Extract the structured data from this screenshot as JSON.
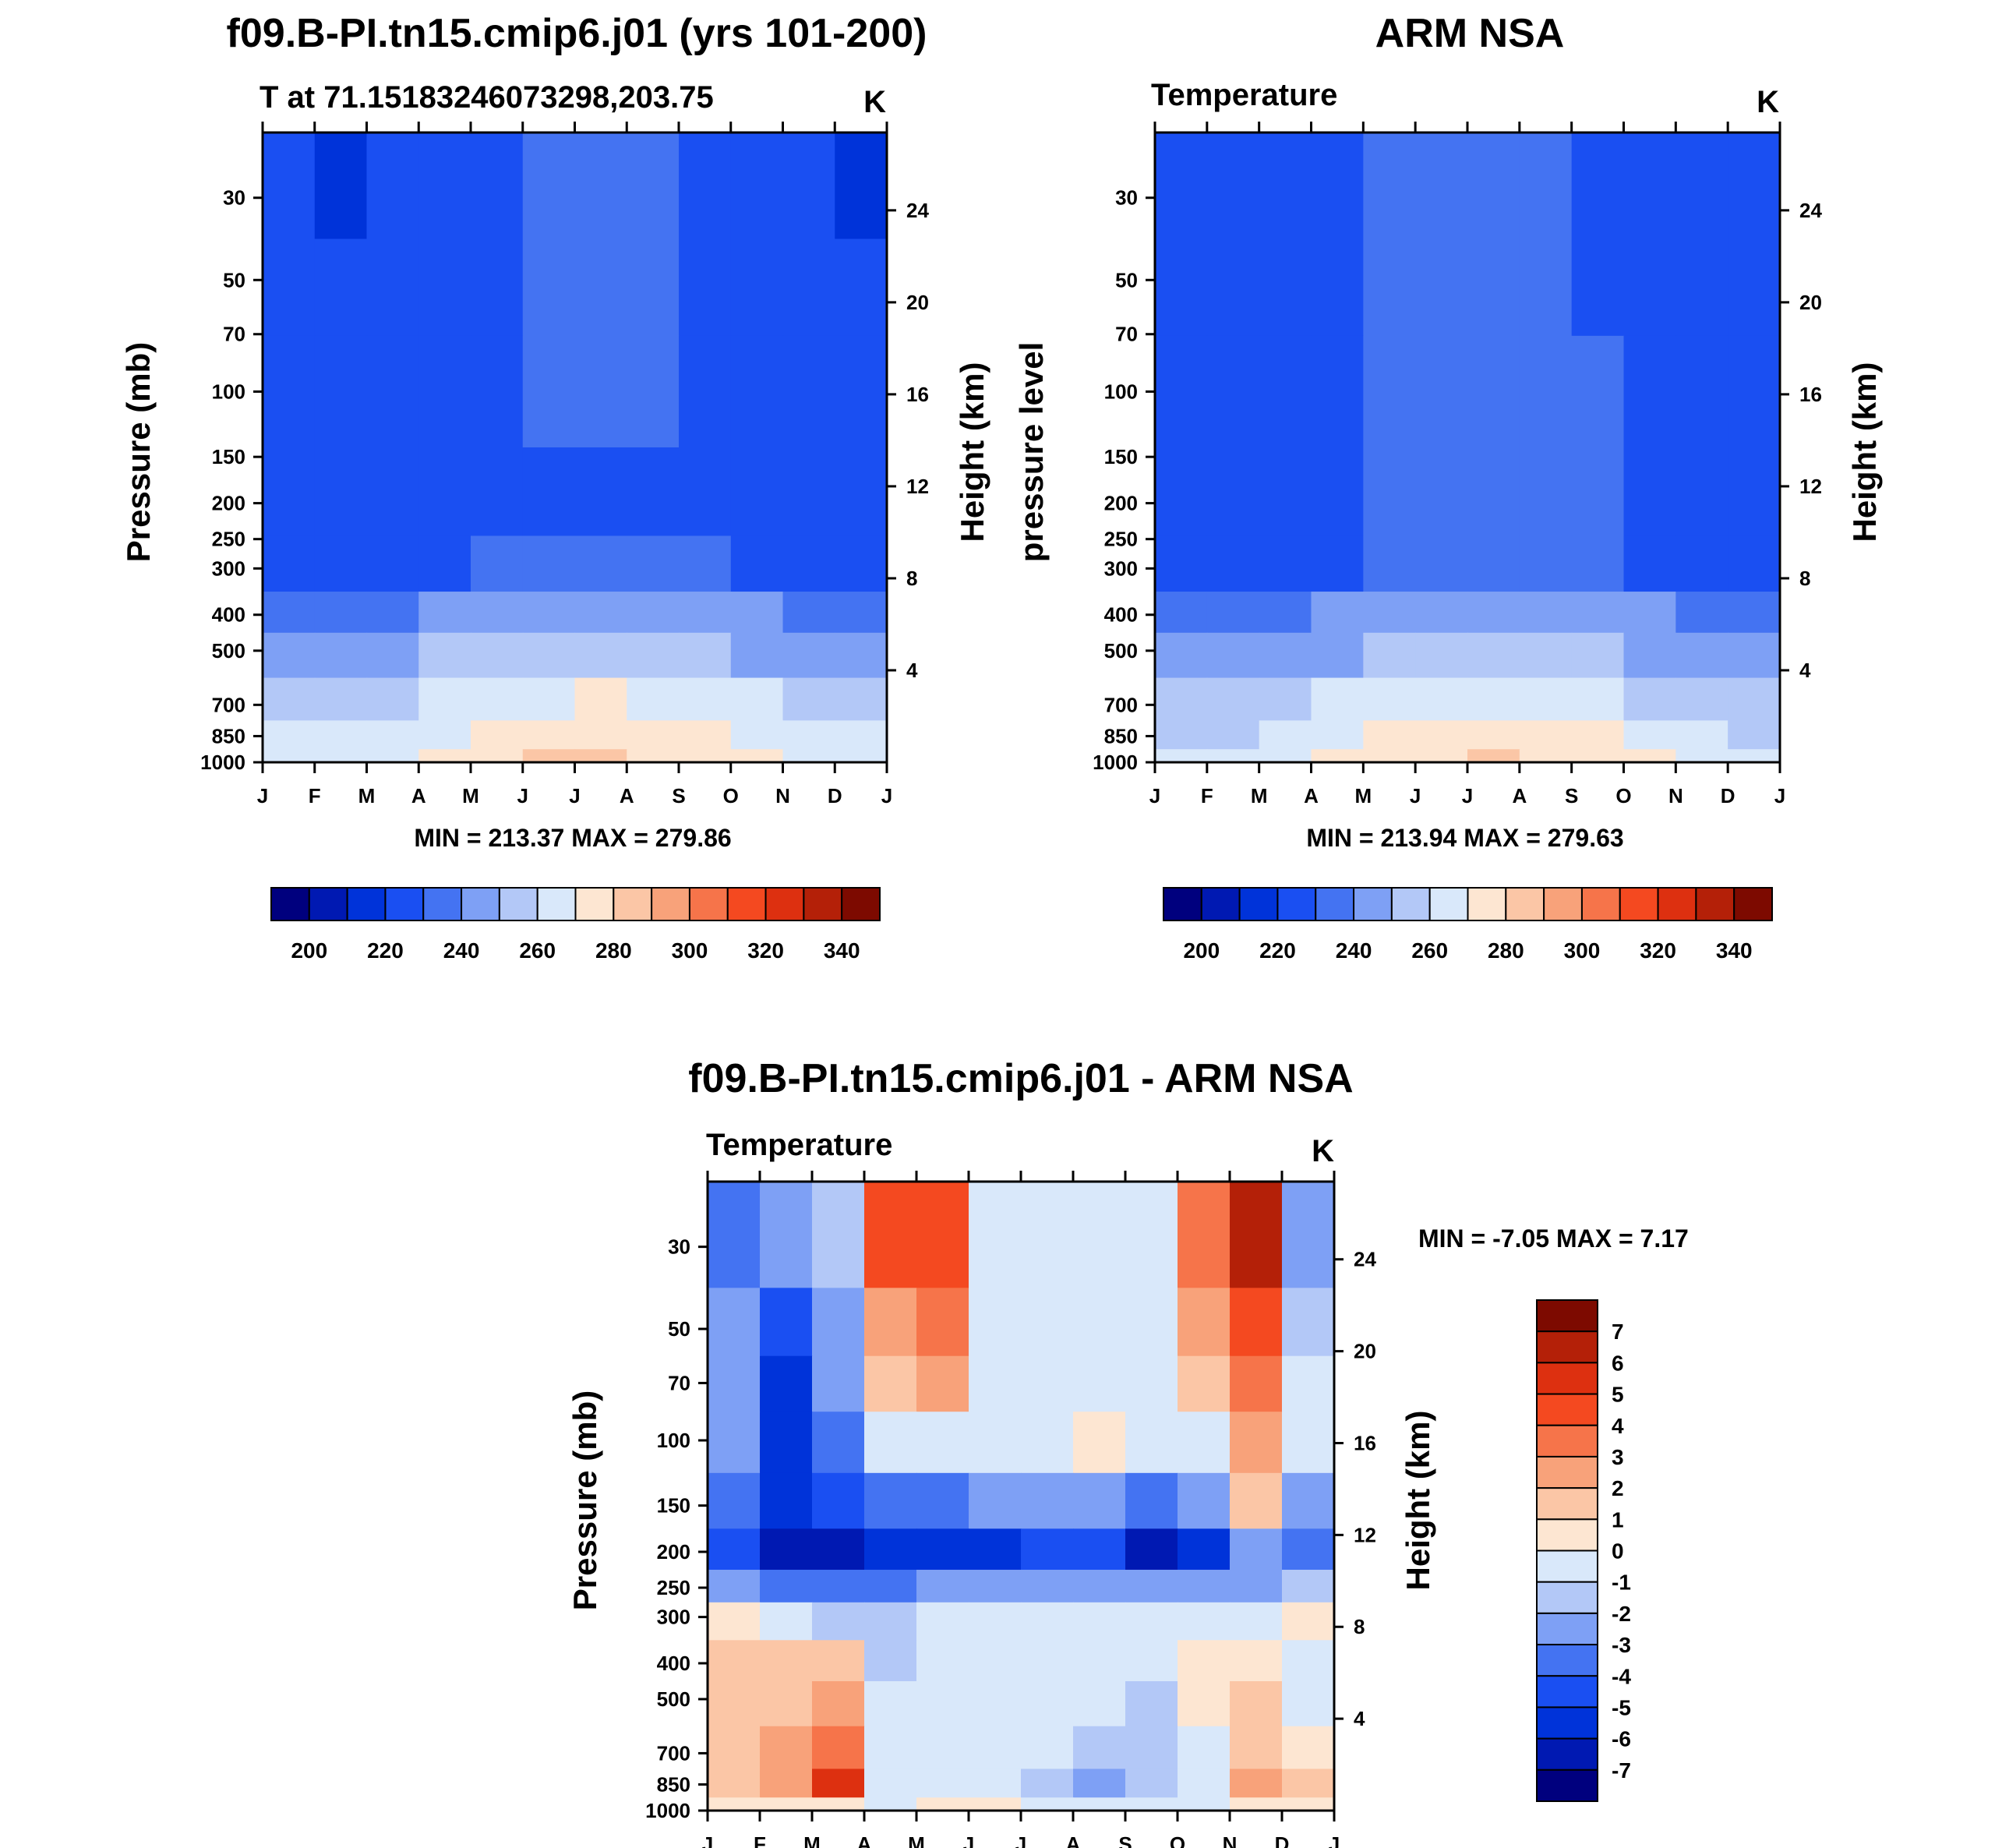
{
  "chart_data": [
    {
      "type": "heatmap",
      "title": "f09.B-PI.tn15.cmip6.j01 (yrs 101-200)",
      "subtitle_left": "T at 71.15183246073298,203.75",
      "subtitle_right": "K",
      "xlabel": "",
      "ylabel": "Pressure (mb)",
      "ylabel_right": "Height (km)",
      "x_ticks": [
        "J",
        "F",
        "M",
        "A",
        "M",
        "J",
        "J",
        "A",
        "S",
        "O",
        "N",
        "D",
        "J"
      ],
      "y_ticks": [
        30,
        50,
        70,
        100,
        150,
        200,
        250,
        300,
        400,
        500,
        700,
        850,
        1000
      ],
      "y_ticks_right": [
        24,
        20,
        16,
        12,
        8,
        4
      ],
      "ylim": [
        20,
        1000
      ],
      "stats": "MIN = 213.37 MAX = 279.86",
      "colorbar": {
        "labels": [
          200,
          220,
          240,
          260,
          280,
          300,
          320,
          340
        ]
      },
      "levels_K": [
        {
          "level": "1000",
          "values": [
            265,
            266,
            268,
            272,
            277,
            280,
            280,
            279,
            276,
            271,
            267,
            265
          ]
        },
        {
          "level": "850",
          "values": [
            261,
            262,
            264,
            268,
            273,
            276,
            277,
            276,
            272,
            267,
            264,
            262
          ]
        },
        {
          "level": "700",
          "values": [
            256,
            256,
            258,
            262,
            266,
            269,
            270,
            269,
            265,
            260,
            257,
            256
          ]
        },
        {
          "level": "500",
          "values": [
            246,
            246,
            247,
            250,
            253,
            256,
            257,
            256,
            253,
            249,
            247,
            246
          ]
        },
        {
          "level": "400",
          "values": [
            238,
            238,
            239,
            241,
            244,
            246,
            247,
            246,
            244,
            241,
            239,
            238
          ]
        },
        {
          "level": "300",
          "values": [
            227,
            227,
            228,
            229,
            231,
            232,
            232,
            232,
            230,
            228,
            227,
            227
          ]
        },
        {
          "level": "200",
          "values": [
            222,
            222,
            223,
            225,
            228,
            229,
            229,
            229,
            227,
            225,
            223,
            222
          ]
        },
        {
          "level": "100",
          "values": [
            222,
            221,
            223,
            225,
            228,
            230,
            231,
            230,
            228,
            225,
            222,
            221
          ]
        },
        {
          "level": "50",
          "values": [
            221,
            220,
            222,
            225,
            228,
            230,
            231,
            230,
            228,
            225,
            222,
            220
          ]
        },
        {
          "level": "30",
          "values": [
            220,
            219,
            221,
            225,
            228,
            230,
            231,
            230,
            228,
            225,
            221,
            219
          ]
        }
      ]
    },
    {
      "type": "heatmap",
      "title": "ARM NSA",
      "subtitle_left": "Temperature",
      "subtitle_right": "K",
      "xlabel": "",
      "ylabel": "pressure level",
      "ylabel_right": "Height (km)",
      "x_ticks": [
        "J",
        "F",
        "M",
        "A",
        "M",
        "J",
        "J",
        "A",
        "S",
        "O",
        "N",
        "D",
        "J"
      ],
      "y_ticks": [
        30,
        50,
        70,
        100,
        150,
        200,
        250,
        300,
        400,
        500,
        700,
        850,
        1000
      ],
      "y_ticks_right": [
        24,
        20,
        16,
        12,
        8,
        4
      ],
      "ylim": [
        20,
        1000
      ],
      "stats": "MIN = 213.94 MAX = 279.63",
      "colorbar": {
        "labels": [
          200,
          220,
          240,
          260,
          280,
          300,
          320,
          340
        ]
      },
      "levels_K": [
        {
          "level": "1000",
          "values": [
            262,
            263,
            265,
            270,
            276,
            279,
            280,
            279,
            276,
            270,
            265,
            263
          ]
        },
        {
          "level": "850",
          "values": [
            258,
            259,
            261,
            266,
            272,
            276,
            277,
            276,
            272,
            266,
            261,
            259
          ]
        },
        {
          "level": "700",
          "values": [
            252,
            253,
            255,
            260,
            265,
            268,
            269,
            268,
            264,
            259,
            255,
            253
          ]
        },
        {
          "level": "500",
          "values": [
            243,
            243,
            245,
            249,
            253,
            255,
            256,
            255,
            252,
            248,
            245,
            244
          ]
        },
        {
          "level": "400",
          "values": [
            236,
            236,
            237,
            240,
            243,
            245,
            246,
            245,
            243,
            240,
            237,
            236
          ]
        },
        {
          "level": "300",
          "values": [
            226,
            225,
            226,
            229,
            232,
            233,
            234,
            233,
            231,
            228,
            226,
            226
          ]
        },
        {
          "level": "200",
          "values": [
            223,
            222,
            224,
            227,
            230,
            232,
            233,
            232,
            230,
            227,
            224,
            223
          ]
        },
        {
          "level": "100",
          "values": [
            224,
            223,
            225,
            228,
            230,
            232,
            233,
            232,
            230,
            227,
            224,
            222
          ]
        },
        {
          "level": "50",
          "values": [
            224,
            223,
            225,
            228,
            230,
            232,
            232,
            231,
            229,
            225,
            222,
            221
          ]
        },
        {
          "level": "30",
          "values": [
            224,
            223,
            225,
            228,
            230,
            232,
            232,
            231,
            228,
            224,
            221,
            221
          ]
        }
      ]
    },
    {
      "type": "heatmap",
      "title": "f09.B-PI.tn15.cmip6.j01 - ARM NSA",
      "subtitle_left": "Temperature",
      "subtitle_right": "K",
      "xlabel": "",
      "ylabel": "Pressure (mb)",
      "ylabel_right": "Height (km)",
      "x_ticks": [
        "J",
        "F",
        "M",
        "A",
        "M",
        "J",
        "J",
        "A",
        "S",
        "O",
        "N",
        "D",
        "J"
      ],
      "y_ticks": [
        30,
        50,
        70,
        100,
        150,
        200,
        250,
        300,
        400,
        500,
        700,
        850,
        1000
      ],
      "y_ticks_right": [
        24,
        20,
        16,
        12,
        8,
        4
      ],
      "ylim": [
        20,
        1000
      ],
      "stats": "MIN =  -7.05 MAX =   7.17",
      "colorbar": {
        "labels": [
          7,
          6,
          5,
          4,
          3,
          2,
          1,
          0,
          -1,
          -2,
          -3,
          -4,
          -5,
          -6,
          -7
        ]
      },
      "levels_K": [
        {
          "level": "1000",
          "values": [
            0,
            0,
            0,
            -1,
            0,
            0,
            -1,
            -1,
            -1,
            -1,
            0,
            0
          ]
        },
        {
          "level": "850",
          "values": [
            1,
            2,
            5,
            -1,
            -1,
            -1,
            -2,
            -3,
            -2,
            -1,
            2,
            1
          ]
        },
        {
          "level": "700",
          "values": [
            1,
            2,
            3,
            -1,
            -1,
            -1,
            -1,
            -2,
            -2,
            -1,
            1,
            0
          ]
        },
        {
          "level": "500",
          "values": [
            1,
            1,
            2,
            -1,
            -1,
            -1,
            -1,
            -1,
            -2,
            0,
            1,
            -1
          ]
        },
        {
          "level": "400",
          "values": [
            1,
            1,
            1,
            -2,
            -1,
            -1,
            -1,
            -1,
            -1,
            0,
            0,
            -1
          ]
        },
        {
          "level": "300",
          "values": [
            0,
            -1,
            -2,
            -2,
            -1,
            -1,
            -1,
            -1,
            -1,
            -1,
            -1,
            0
          ]
        },
        {
          "level": "250",
          "values": [
            -3,
            -4,
            -4,
            -4,
            -3,
            -3,
            -3,
            -3,
            -3,
            -3,
            -3,
            -2
          ]
        },
        {
          "level": "200",
          "values": [
            -5,
            -7,
            -7,
            -6,
            -6,
            -6,
            -5,
            -5,
            -7,
            -6,
            -3,
            -4
          ]
        },
        {
          "level": "150",
          "values": [
            -4,
            -6,
            -5,
            -4,
            -4,
            -3,
            -3,
            -3,
            -4,
            -3,
            1,
            -3
          ]
        },
        {
          "level": "100",
          "values": [
            -3,
            -6,
            -4,
            -1,
            -1,
            -1,
            -1,
            0,
            -1,
            -1,
            2,
            -1
          ]
        },
        {
          "level": "70",
          "values": [
            -3,
            -6,
            -3,
            1,
            2,
            -1,
            -1,
            -1,
            -1,
            1,
            3,
            -1
          ]
        },
        {
          "level": "50",
          "values": [
            -3,
            -5,
            -3,
            2,
            3,
            -1,
            -1,
            -1,
            -1,
            2,
            4,
            -2
          ]
        },
        {
          "level": "30",
          "values": [
            -4,
            -3,
            -2,
            4,
            4,
            -1,
            -1,
            -1,
            -1,
            3,
            6,
            -3
          ]
        }
      ]
    }
  ]
}
